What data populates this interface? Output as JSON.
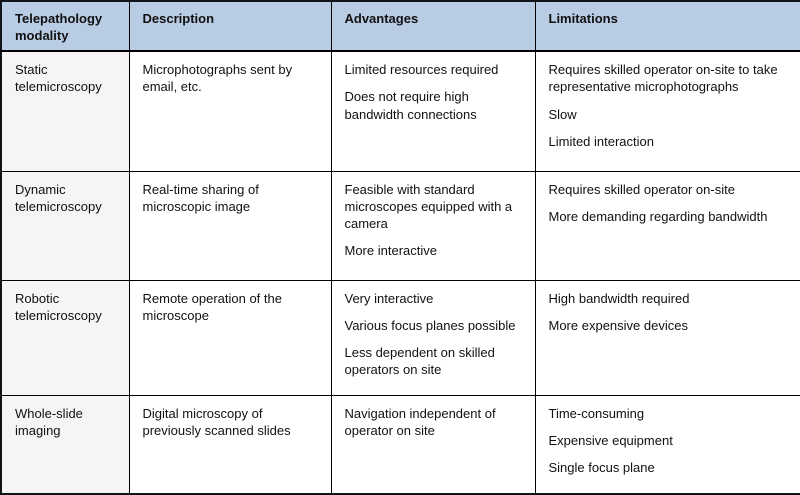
{
  "colors": {
    "header_bg": "#b8cce4",
    "modality_col_bg": "#f6f5f5",
    "border": "#000000"
  },
  "table": {
    "columns": [
      "Telepathology modality",
      "Description",
      "Advantages",
      "Limitations"
    ],
    "rows": [
      {
        "modality": "Static telemicroscopy",
        "description": [
          "Microphotographs sent by email, etc."
        ],
        "advantages": [
          "Limited resources required",
          "Does not require high bandwidth connections"
        ],
        "limitations": [
          "Requires skilled operator on-site to take representative microphotographs",
          "Slow",
          "Limited interaction"
        ]
      },
      {
        "modality": "Dynamic telemicroscopy",
        "description": [
          "Real-time sharing of microscopic image"
        ],
        "advantages": [
          "Feasible with standard microscopes equipped with a camera",
          "More interactive"
        ],
        "limitations": [
          "Requires skilled operator on-site",
          "More demanding regarding bandwidth"
        ]
      },
      {
        "modality": "Robotic telemicroscopy",
        "description": [
          "Remote operation of the microscope"
        ],
        "advantages": [
          "Very interactive",
          "Various focus planes possible",
          "Less dependent on skilled operators on site"
        ],
        "limitations": [
          "High bandwidth required",
          "More expensive devices"
        ]
      },
      {
        "modality": "Whole-slide imaging",
        "description": [
          "Digital microscopy of previously scanned slides"
        ],
        "advantages": [
          "Navigation independent of operator on site"
        ],
        "limitations": [
          "Time-consuming",
          "Expensive equipment",
          "Single focus plane"
        ]
      }
    ]
  }
}
